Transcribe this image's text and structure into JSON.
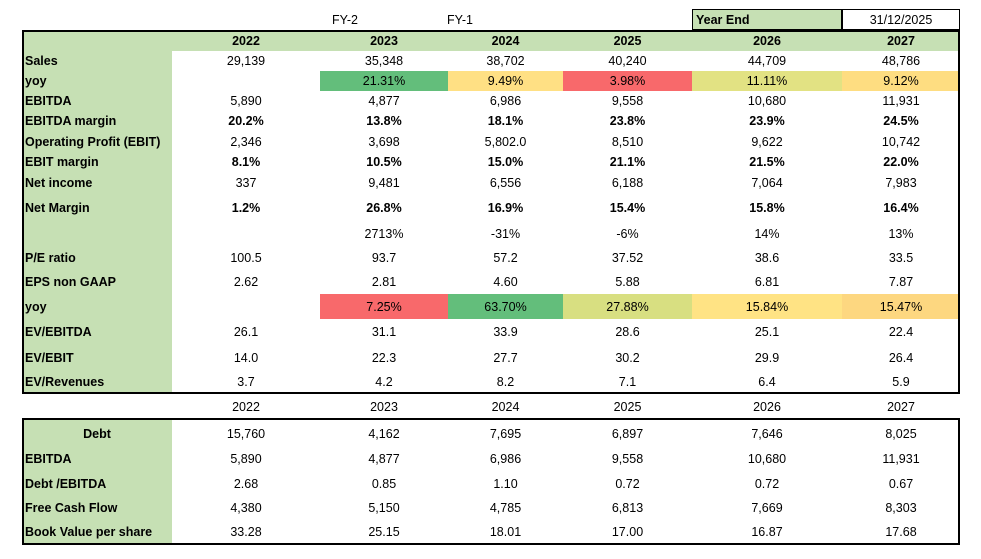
{
  "header": {
    "fy_labels": [
      "FY-2",
      "FY-1"
    ],
    "year_end_label": "Year End",
    "year_end_value": "31/12/2025"
  },
  "table": {
    "columns": [
      "2022",
      "2023",
      "2024",
      "2025",
      "2026",
      "2027"
    ],
    "rows": [
      {
        "label": "Sales",
        "values": [
          "29,139",
          "35,348",
          "38,702",
          "40,240",
          "44,709",
          "48,786"
        ]
      },
      {
        "label": "yoy",
        "values": [
          null,
          "21.31%",
          "9.49%",
          "3.98%",
          "11.11%",
          "9.12%"
        ],
        "colors": [
          null,
          "#63be7b",
          "#ffe084",
          "#f8696b",
          "#e2e283",
          "#fedd81"
        ]
      },
      {
        "label": "EBITDA",
        "values": [
          "5,890",
          "4,877",
          "6,986",
          "9,558",
          "10,680",
          "11,931"
        ]
      },
      {
        "label": "EBITDA margin",
        "values": [
          "20.2%",
          "13.8%",
          "18.1%",
          "23.8%",
          "23.9%",
          "24.5%"
        ]
      },
      {
        "label": "Operating Profit (EBIT)",
        "values": [
          "2,346",
          "3,698",
          "5,802.0",
          "8,510",
          "9,622",
          "10,742"
        ]
      },
      {
        "label": "EBIT margin",
        "values": [
          "8.1%",
          "10.5%",
          "15.0%",
          "21.1%",
          "21.5%",
          "22.0%"
        ]
      },
      {
        "label": "Net income",
        "values": [
          "337",
          "9,481",
          "6,556",
          "6,188",
          "7,064",
          "7,983"
        ]
      },
      {
        "label": "Net Margin",
        "values": [
          "1.2%",
          "26.8%",
          "16.9%",
          "15.4%",
          "15.8%",
          "16.4%"
        ]
      },
      {
        "label": null,
        "values": [
          null,
          "2713%",
          "-31%",
          "-6%",
          "14%",
          "13%"
        ]
      },
      {
        "label": "P/E ratio",
        "values": [
          "100.5",
          "93.7",
          "57.2",
          "37.52",
          "38.6",
          "33.5"
        ]
      },
      {
        "label": "EPS non GAAP",
        "values": [
          "2.62",
          "2.81",
          "4.60",
          "5.88",
          "6.81",
          "7.87"
        ]
      },
      {
        "label": "yoy",
        "values": [
          null,
          "7.25%",
          "63.70%",
          "27.88%",
          "15.84%",
          "15.47%"
        ],
        "colors": [
          null,
          "#f8696b",
          "#63be7b",
          "#d8df81",
          "#ffe384",
          "#fdd780"
        ]
      },
      {
        "label": "EV/EBITDA",
        "values": [
          "26.1",
          "31.1",
          "33.9",
          "28.6",
          "25.1",
          "22.4"
        ]
      },
      {
        "label": "EV/EBIT",
        "values": [
          "14.0",
          "22.3",
          "27.7",
          "30.2",
          "29.9",
          "26.4"
        ]
      },
      {
        "label": "EV/Revenues",
        "values": [
          "3.7",
          "4.2",
          "8.2",
          "7.1",
          "6.4",
          "5.9"
        ]
      }
    ]
  },
  "table2": {
    "columns": [
      "2022",
      "2023",
      "2024",
      "2025",
      "2026",
      "2027"
    ],
    "rows": [
      {
        "label": "Debt",
        "values": [
          "15,760",
          "4,162",
          "7,695",
          "6,897",
          "7,646",
          "8,025"
        ]
      },
      {
        "label": "EBITDA",
        "values": [
          "5,890",
          "4,877",
          "6,986",
          "9,558",
          "10,680",
          "11,931"
        ]
      },
      {
        "label": "Debt /EBITDA",
        "values": [
          "2.68",
          "0.85",
          "1.10",
          "0.72",
          "0.72",
          "0.67"
        ]
      },
      {
        "label": "Free Cash Flow",
        "values": [
          "4,380",
          "5,150",
          "4,785",
          "6,813",
          "7,669",
          "8,303"
        ]
      },
      {
        "label": "Book Value per share",
        "values": [
          "33.28",
          "25.15",
          "18.01",
          "17.00",
          "16.87",
          "17.68"
        ]
      }
    ]
  }
}
